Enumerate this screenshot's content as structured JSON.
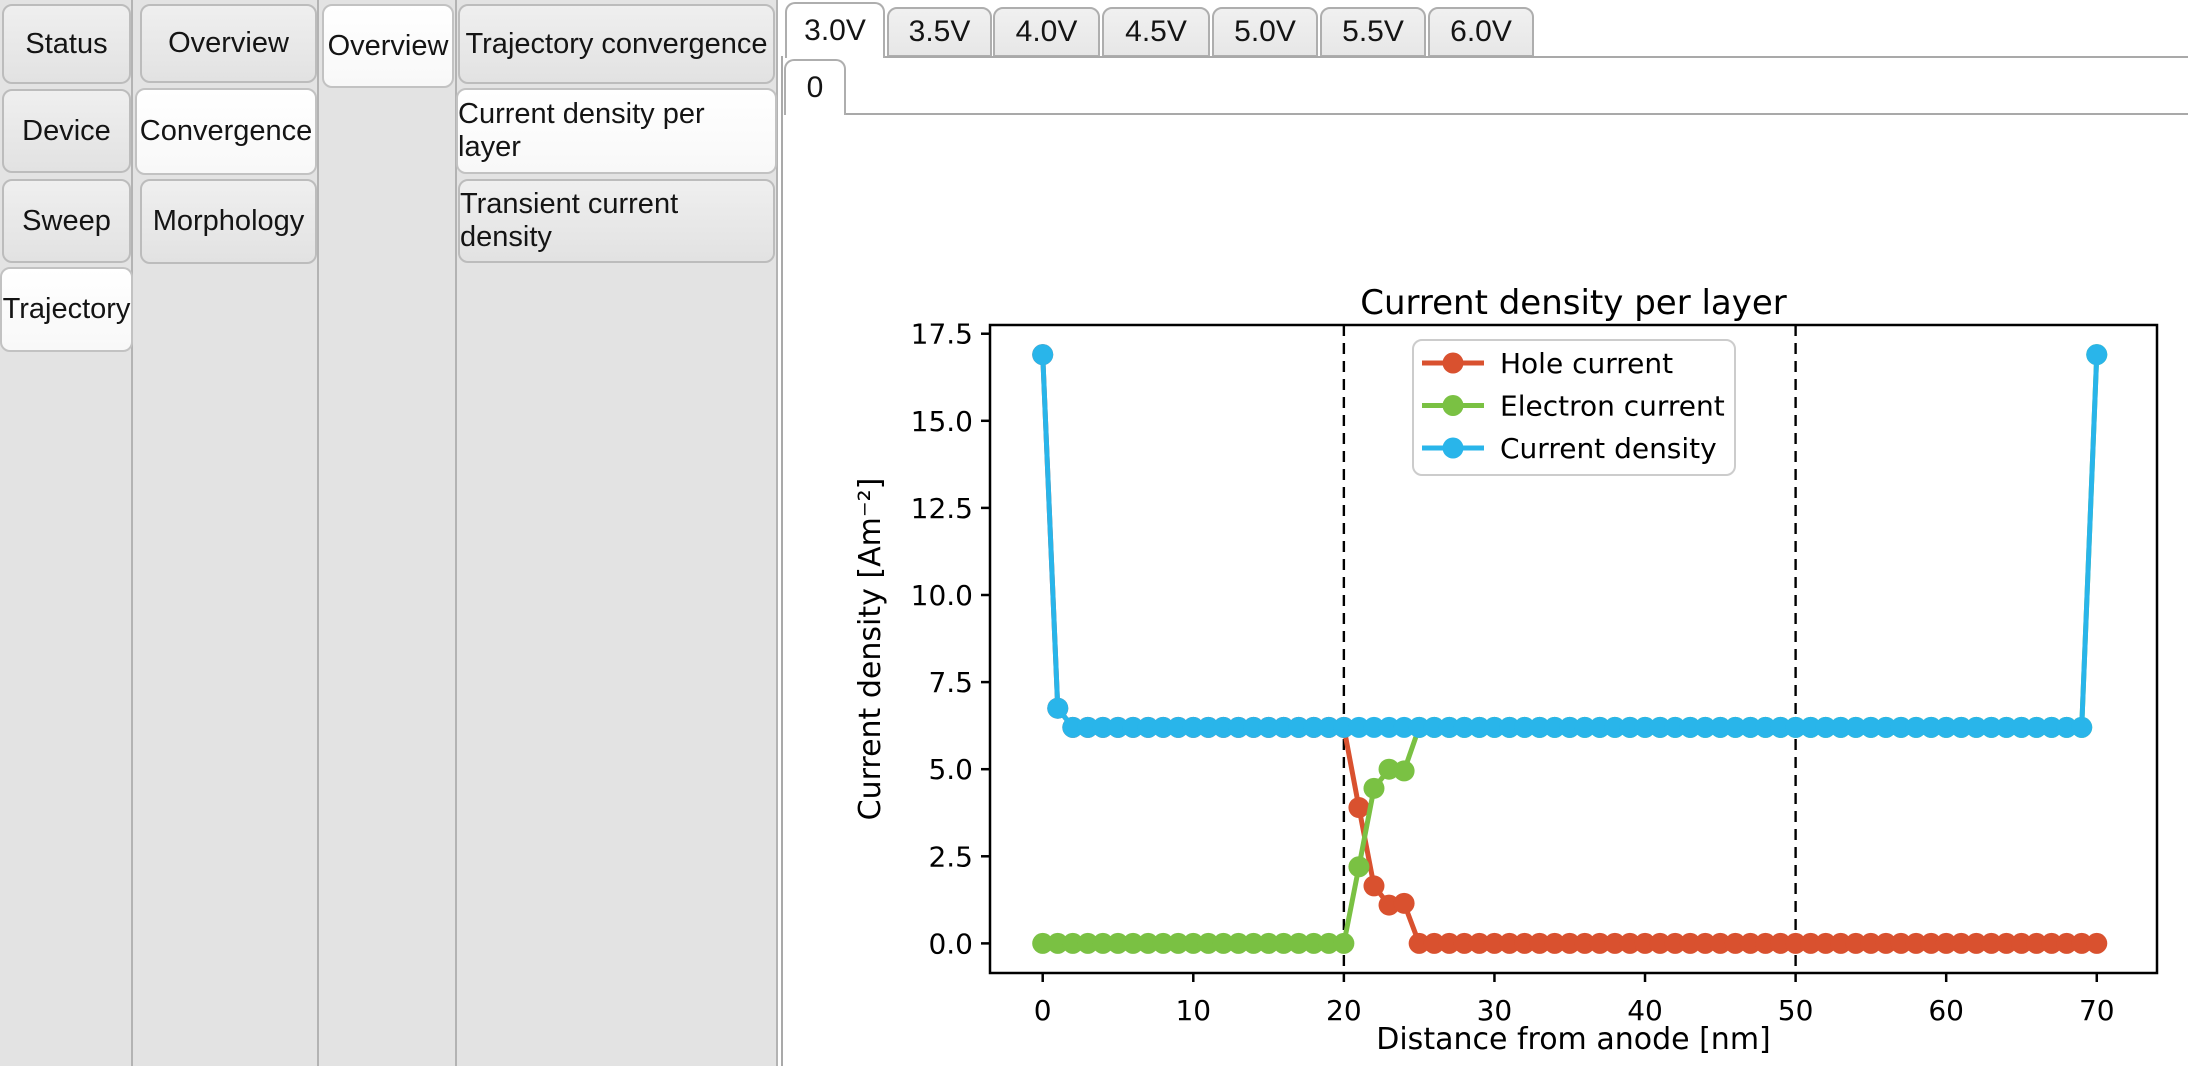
{
  "nav": {
    "level1": {
      "items": [
        {
          "label": "Status",
          "selected": false
        },
        {
          "label": "Device",
          "selected": false
        },
        {
          "label": "Sweep",
          "selected": false
        },
        {
          "label": "Trajectory",
          "selected": true
        }
      ]
    },
    "level2": {
      "items": [
        {
          "label": "Overview",
          "selected": false
        },
        {
          "label": "Convergence",
          "selected": true
        },
        {
          "label": "Morphology",
          "selected": false
        }
      ]
    },
    "level3": {
      "items": [
        {
          "label": "Overview",
          "selected": true
        }
      ]
    },
    "level4": {
      "items": [
        {
          "label": "Trajectory convergence",
          "selected": false
        },
        {
          "label": "Current density per layer",
          "selected": true
        },
        {
          "label": "Transient current density",
          "selected": false
        }
      ]
    }
  },
  "voltage_tabs": {
    "items": [
      {
        "label": "3.0V",
        "selected": true
      },
      {
        "label": "3.5V",
        "selected": false
      },
      {
        "label": "4.0V",
        "selected": false
      },
      {
        "label": "4.5V",
        "selected": false
      },
      {
        "label": "5.0V",
        "selected": false
      },
      {
        "label": "5.5V",
        "selected": false
      },
      {
        "label": "6.0V",
        "selected": false
      }
    ]
  },
  "iteration_tabs": {
    "items": [
      {
        "label": "0",
        "selected": true
      }
    ]
  },
  "toolbar": {
    "icons": [
      "menu-icon",
      "home-icon",
      "back-icon",
      "forward-icon",
      "pan-icon",
      "zoom-icon",
      "subplots-icon",
      "axes-editor-icon",
      "save-icon"
    ],
    "disabled_color": "#808080",
    "active_color": "#111111"
  },
  "chart_data": {
    "type": "line",
    "title": "Current density per layer",
    "xlabel": "Distance from anode [nm]",
    "ylabel": "Current density [Am⁻²]",
    "xlim": [
      -3.5,
      74.0
    ],
    "ylim": [
      -0.85,
      17.75
    ],
    "xticks": [
      0,
      10,
      20,
      30,
      40,
      50,
      60,
      70
    ],
    "yticks": [
      0,
      2.5,
      5,
      7.5,
      10,
      12.5,
      15,
      17.5
    ],
    "grid": false,
    "legend": {
      "visible": true,
      "position": "upper center"
    },
    "vlines": [
      {
        "x": 20,
        "style": "dashed",
        "color": "#000000"
      },
      {
        "x": 50,
        "style": "dashed",
        "color": "#000000"
      }
    ],
    "x": [
      0,
      1,
      2,
      3,
      4,
      5,
      6,
      7,
      8,
      9,
      10,
      11,
      12,
      13,
      14,
      15,
      16,
      17,
      18,
      19,
      20,
      21,
      22,
      23,
      24,
      25,
      26,
      27,
      28,
      29,
      30,
      31,
      32,
      33,
      34,
      35,
      36,
      37,
      38,
      39,
      40,
      41,
      42,
      43,
      44,
      45,
      46,
      47,
      48,
      49,
      50,
      51,
      52,
      53,
      54,
      55,
      56,
      57,
      58,
      59,
      60,
      61,
      62,
      63,
      64,
      65,
      66,
      67,
      68,
      69,
      70
    ],
    "series": [
      {
        "name": "Hole current",
        "color": "#d9512f",
        "values": [
          16.9,
          6.75,
          6.2,
          6.2,
          6.2,
          6.2,
          6.2,
          6.2,
          6.2,
          6.2,
          6.2,
          6.2,
          6.2,
          6.2,
          6.2,
          6.2,
          6.2,
          6.2,
          6.2,
          6.2,
          6.2,
          3.9,
          1.65,
          1.1,
          1.15,
          0,
          0,
          0,
          0,
          0,
          0,
          0,
          0,
          0,
          0,
          0,
          0,
          0,
          0,
          0,
          0,
          0,
          0,
          0,
          0,
          0,
          0,
          0,
          0,
          0,
          0,
          0,
          0,
          0,
          0,
          0,
          0,
          0,
          0,
          0,
          0,
          0,
          0,
          0,
          0,
          0,
          0,
          0,
          0,
          0,
          0
        ]
      },
      {
        "name": "Electron current",
        "color": "#7ac143",
        "values": [
          0,
          0,
          0,
          0,
          0,
          0,
          0,
          0,
          0,
          0,
          0,
          0,
          0,
          0,
          0,
          0,
          0,
          0,
          0,
          0,
          0,
          2.2,
          4.45,
          5.0,
          4.95,
          6.2,
          6.2,
          6.2,
          6.2,
          6.2,
          6.2,
          6.2,
          6.2,
          6.2,
          6.2,
          6.2,
          6.2,
          6.2,
          6.2,
          6.2,
          6.2,
          6.2,
          6.2,
          6.2,
          6.2,
          6.2,
          6.2,
          6.2,
          6.2,
          6.2,
          6.2,
          6.2,
          6.2,
          6.2,
          6.2,
          6.2,
          6.2,
          6.2,
          6.2,
          6.2,
          6.2,
          6.2,
          6.2,
          6.2,
          6.2,
          6.2,
          6.2,
          6.2,
          6.2,
          6.2,
          16.9
        ]
      },
      {
        "name": "Current density",
        "color": "#29b5ea",
        "values": [
          16.9,
          6.75,
          6.2,
          6.2,
          6.2,
          6.2,
          6.2,
          6.2,
          6.2,
          6.2,
          6.2,
          6.2,
          6.2,
          6.2,
          6.2,
          6.2,
          6.2,
          6.2,
          6.2,
          6.2,
          6.2,
          6.2,
          6.2,
          6.2,
          6.2,
          6.2,
          6.2,
          6.2,
          6.2,
          6.2,
          6.2,
          6.2,
          6.2,
          6.2,
          6.2,
          6.2,
          6.2,
          6.2,
          6.2,
          6.2,
          6.2,
          6.2,
          6.2,
          6.2,
          6.2,
          6.2,
          6.2,
          6.2,
          6.2,
          6.2,
          6.2,
          6.2,
          6.2,
          6.2,
          6.2,
          6.2,
          6.2,
          6.2,
          6.2,
          6.2,
          6.2,
          6.2,
          6.2,
          6.2,
          6.2,
          6.2,
          6.2,
          6.2,
          6.2,
          6.2,
          16.9
        ]
      }
    ]
  }
}
